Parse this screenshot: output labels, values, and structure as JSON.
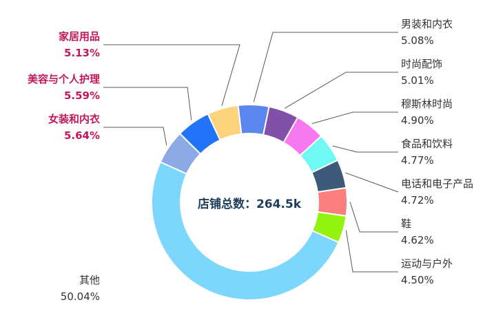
{
  "chart_data": {
    "type": "pie",
    "donut": true,
    "center_label": "店铺总数：264.5k",
    "slices": [
      {
        "label": "男装和内衣",
        "value": 5.08,
        "display": "5.08%",
        "color": "#5b86ee"
      },
      {
        "label": "时尚配饰",
        "value": 5.01,
        "display": "5.01%",
        "color": "#8250a8"
      },
      {
        "label": "穆斯林时尚",
        "value": 4.9,
        "display": "4.90%",
        "color": "#f778f0"
      },
      {
        "label": "食品和饮料",
        "value": 4.77,
        "display": "4.77%",
        "color": "#6ff9f4"
      },
      {
        "label": "电话和电子产品",
        "value": 4.72,
        "display": "4.72%",
        "color": "#3d5a7a"
      },
      {
        "label": "鞋",
        "value": 4.62,
        "display": "4.62%",
        "color": "#fa7e7c"
      },
      {
        "label": "运动与户外",
        "value": 4.5,
        "display": "4.50%",
        "color": "#94f20f"
      },
      {
        "label": "其他",
        "value": 50.04,
        "display": "50.04%",
        "color": "#7dd7fd"
      },
      {
        "label": "女装和内衣",
        "value": 5.64,
        "display": "5.64%",
        "color": "#8ba9e4",
        "highlight": true
      },
      {
        "label": "美容与个人护理",
        "value": 5.59,
        "display": "5.59%",
        "color": "#2173f8",
        "highlight": true
      },
      {
        "label": "家居用品",
        "value": 5.13,
        "display": "5.13%",
        "color": "#fcd37d",
        "highlight": true
      }
    ]
  },
  "colors": {
    "highlight_label": "#c2185b",
    "label": "#333333",
    "center_text": "#1e3d5c",
    "leader_line": "#555555"
  }
}
